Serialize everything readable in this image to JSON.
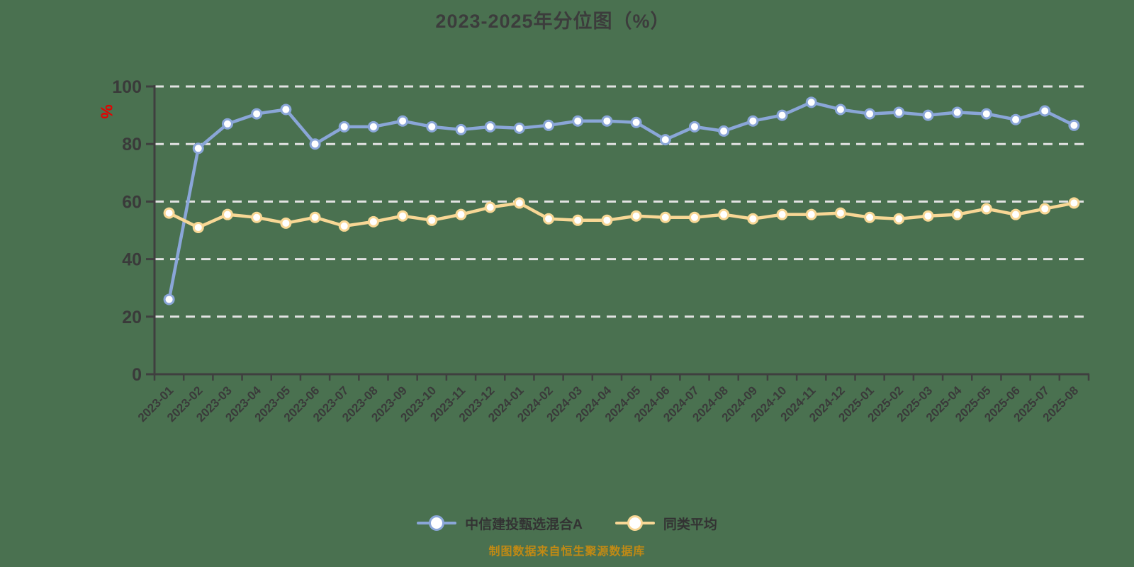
{
  "title": "2023-2025年分位图（%）",
  "unit_label": "%",
  "footer": "制图数据来自恒生聚源数据库",
  "colors": {
    "background": "#4a7150",
    "fund_line": "#8aa6d8",
    "avg_line": "#f8d795",
    "marker_fill": "#ffffff",
    "grid": "#e2e2e2",
    "axis": "#3f3f3f",
    "label_text": "#3a3a3a",
    "footer_text": "#c18a14",
    "unit_red": "#e60000"
  },
  "legend": [
    {
      "label": "中信建投甄选混合A",
      "color": "#8aa6d8"
    },
    {
      "label": "同类平均",
      "color": "#f8d795"
    }
  ],
  "chart_data": {
    "type": "line",
    "title": "2023-2025年分位图（%）",
    "x": [
      "2023-01",
      "2023-02",
      "2023-03",
      "2023-04",
      "2023-05",
      "2023-06",
      "2023-07",
      "2023-08",
      "2023-09",
      "2023-10",
      "2023-11",
      "2023-12",
      "2024-01",
      "2024-02",
      "2024-03",
      "2024-04",
      "2024-05",
      "2024-06",
      "2024-07",
      "2024-08",
      "2024-09",
      "2024-10",
      "2024-11",
      "2024-12",
      "2025-01",
      "2025-02",
      "2025-03",
      "2025-04",
      "2025-05",
      "2025-06",
      "2025-07",
      "2025-08"
    ],
    "series": [
      {
        "name": "中信建投甄选混合A",
        "color": "#8aa6d8",
        "values": [
          26,
          78.5,
          87,
          90.5,
          92,
          80,
          86,
          86,
          88,
          86,
          85,
          86,
          85.5,
          86.5,
          88,
          88,
          87.5,
          81.5,
          86,
          84.5,
          88,
          90,
          94.5,
          92,
          90.5,
          91,
          90,
          91,
          90.5,
          88.5,
          91.5,
          86.5
        ]
      },
      {
        "name": "同类平均",
        "color": "#f8d795",
        "values": [
          56,
          51,
          55.5,
          54.5,
          52.5,
          54.5,
          51.5,
          53,
          55,
          53.5,
          55.5,
          58,
          59.5,
          54,
          53.5,
          53.5,
          55,
          54.5,
          54.5,
          55.5,
          54,
          55.5,
          55.5,
          56,
          54.5,
          54,
          55,
          55.5,
          57.5,
          55.5,
          57.5,
          59.5
        ]
      }
    ],
    "ylabel": "%",
    "ylim": [
      0,
      100
    ],
    "yticks": [
      0,
      20,
      40,
      60,
      80,
      100
    ],
    "grid": "horizontal-dashed",
    "legend_position": "bottom"
  }
}
